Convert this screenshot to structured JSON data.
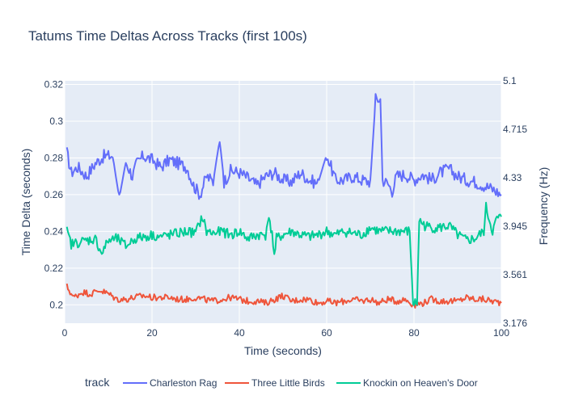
{
  "chart_data": {
    "type": "line",
    "title": "Tatums Time Deltas Across Tracks (first 100s)",
    "xlabel": "Time (seconds)",
    "ylabel": "Time Delta (seconds)",
    "y2label": "Frequency (Hz)",
    "xlim": [
      0,
      100
    ],
    "ylim": [
      0.19,
      0.322
    ],
    "xticks": [
      0,
      20,
      40,
      60,
      80,
      100
    ],
    "yticks": [
      0.2,
      0.22,
      0.24,
      0.26,
      0.28,
      0.3,
      0.32
    ],
    "y2ticks": [
      "5.1",
      "4.715",
      "4.33",
      "3.945",
      "3.561",
      "3.176"
    ],
    "grid": true,
    "legend": {
      "title": "track",
      "position": "bottom"
    },
    "series": [
      {
        "name": "Charleston Rag",
        "color": "#636efa",
        "points": [
          [
            0.5,
            0.283
          ],
          [
            1.5,
            0.272
          ],
          [
            3,
            0.275
          ],
          [
            5,
            0.27
          ],
          [
            7,
            0.277
          ],
          [
            9,
            0.281
          ],
          [
            11,
            0.281
          ],
          [
            12.5,
            0.258
          ],
          [
            14,
            0.278
          ],
          [
            15.5,
            0.27
          ],
          [
            16.5,
            0.277
          ],
          [
            18,
            0.281
          ],
          [
            20,
            0.279
          ],
          [
            22,
            0.275
          ],
          [
            24,
            0.279
          ],
          [
            26,
            0.277
          ],
          [
            28,
            0.275
          ],
          [
            29.5,
            0.265
          ],
          [
            31,
            0.26
          ],
          [
            32.5,
            0.27
          ],
          [
            34,
            0.267
          ],
          [
            35.5,
            0.29
          ],
          [
            36.5,
            0.267
          ],
          [
            38,
            0.273
          ],
          [
            40,
            0.272
          ],
          [
            42,
            0.269
          ],
          [
            44,
            0.265
          ],
          [
            46,
            0.27
          ],
          [
            48,
            0.272
          ],
          [
            50,
            0.268
          ],
          [
            52,
            0.267
          ],
          [
            54,
            0.272
          ],
          [
            56,
            0.268
          ],
          [
            58,
            0.266
          ],
          [
            60,
            0.282
          ],
          [
            62,
            0.268
          ],
          [
            64,
            0.268
          ],
          [
            66,
            0.27
          ],
          [
            68,
            0.268
          ],
          [
            70,
            0.267
          ],
          [
            71.2,
            0.312
          ],
          [
            72.3,
            0.312
          ],
          [
            72.8,
            0.268
          ],
          [
            74,
            0.266
          ],
          [
            75,
            0.262
          ],
          [
            76,
            0.27
          ],
          [
            78,
            0.271
          ],
          [
            80,
            0.268
          ],
          [
            82,
            0.271
          ],
          [
            84,
            0.268
          ],
          [
            86,
            0.272
          ],
          [
            88,
            0.274
          ],
          [
            90,
            0.27
          ],
          [
            92,
            0.268
          ],
          [
            94,
            0.267
          ],
          [
            96,
            0.265
          ],
          [
            98,
            0.263
          ],
          [
            100,
            0.26
          ]
        ]
      },
      {
        "name": "Three Little Birds",
        "color": "#ef553b",
        "points": [
          [
            0.5,
            0.21
          ],
          [
            2,
            0.204
          ],
          [
            4,
            0.207
          ],
          [
            6,
            0.206
          ],
          [
            8,
            0.208
          ],
          [
            10,
            0.206
          ],
          [
            12,
            0.203
          ],
          [
            14,
            0.203
          ],
          [
            16,
            0.204
          ],
          [
            18,
            0.205
          ],
          [
            20,
            0.204
          ],
          [
            22,
            0.204
          ],
          [
            24,
            0.204
          ],
          [
            26,
            0.203
          ],
          [
            28,
            0.203
          ],
          [
            30,
            0.204
          ],
          [
            32,
            0.203
          ],
          [
            34,
            0.202
          ],
          [
            36,
            0.203
          ],
          [
            38,
            0.204
          ],
          [
            40,
            0.203
          ],
          [
            42,
            0.202
          ],
          [
            44,
            0.202
          ],
          [
            46,
            0.201
          ],
          [
            48,
            0.203
          ],
          [
            50,
            0.205
          ],
          [
            52,
            0.202
          ],
          [
            54,
            0.203
          ],
          [
            56,
            0.203
          ],
          [
            58,
            0.201
          ],
          [
            60,
            0.202
          ],
          [
            62,
            0.201
          ],
          [
            64,
            0.202
          ],
          [
            66,
            0.203
          ],
          [
            68,
            0.202
          ],
          [
            70,
            0.203
          ],
          [
            72,
            0.201
          ],
          [
            74,
            0.203
          ],
          [
            76,
            0.202
          ],
          [
            78,
            0.203
          ],
          [
            80,
            0.2
          ],
          [
            82,
            0.201
          ],
          [
            84,
            0.203
          ],
          [
            86,
            0.202
          ],
          [
            88,
            0.202
          ],
          [
            90,
            0.202
          ],
          [
            92,
            0.204
          ],
          [
            94,
            0.203
          ],
          [
            96,
            0.203
          ],
          [
            98,
            0.202
          ],
          [
            100,
            0.201
          ]
        ]
      },
      {
        "name": "Knockin on Heaven's Door",
        "color": "#00cc96",
        "points": [
          [
            0.5,
            0.24
          ],
          [
            1.5,
            0.233
          ],
          [
            3,
            0.234
          ],
          [
            5,
            0.235
          ],
          [
            7,
            0.236
          ],
          [
            8.5,
            0.228
          ],
          [
            10,
            0.235
          ],
          [
            12,
            0.236
          ],
          [
            14,
            0.232
          ],
          [
            16,
            0.236
          ],
          [
            18,
            0.237
          ],
          [
            20,
            0.238
          ],
          [
            22,
            0.237
          ],
          [
            24,
            0.238
          ],
          [
            26,
            0.239
          ],
          [
            28,
            0.24
          ],
          [
            30,
            0.239
          ],
          [
            31.5,
            0.248
          ],
          [
            32.5,
            0.24
          ],
          [
            34,
            0.239
          ],
          [
            36,
            0.24
          ],
          [
            38,
            0.238
          ],
          [
            40,
            0.24
          ],
          [
            42,
            0.236
          ],
          [
            44,
            0.238
          ],
          [
            46,
            0.238
          ],
          [
            46.5,
            0.247
          ],
          [
            47.5,
            0.24
          ],
          [
            48,
            0.226
          ],
          [
            48.5,
            0.236
          ],
          [
            50,
            0.238
          ],
          [
            52,
            0.24
          ],
          [
            54,
            0.238
          ],
          [
            56,
            0.237
          ],
          [
            58,
            0.238
          ],
          [
            60,
            0.24
          ],
          [
            62,
            0.238
          ],
          [
            64,
            0.24
          ],
          [
            66,
            0.239
          ],
          [
            68,
            0.238
          ],
          [
            70,
            0.242
          ],
          [
            72,
            0.24
          ],
          [
            74,
            0.24
          ],
          [
            76,
            0.24
          ],
          [
            79,
            0.24
          ],
          [
            79.8,
            0.201
          ],
          [
            80.7,
            0.201
          ],
          [
            81.2,
            0.246
          ],
          [
            82.5,
            0.243
          ],
          [
            84,
            0.242
          ],
          [
            86,
            0.242
          ],
          [
            88,
            0.243
          ],
          [
            90,
            0.238
          ],
          [
            92,
            0.235
          ],
          [
            94,
            0.236
          ],
          [
            96,
            0.24
          ],
          [
            96.5,
            0.253
          ],
          [
            98,
            0.24
          ],
          [
            99,
            0.247
          ],
          [
            100,
            0.248
          ]
        ]
      }
    ]
  }
}
